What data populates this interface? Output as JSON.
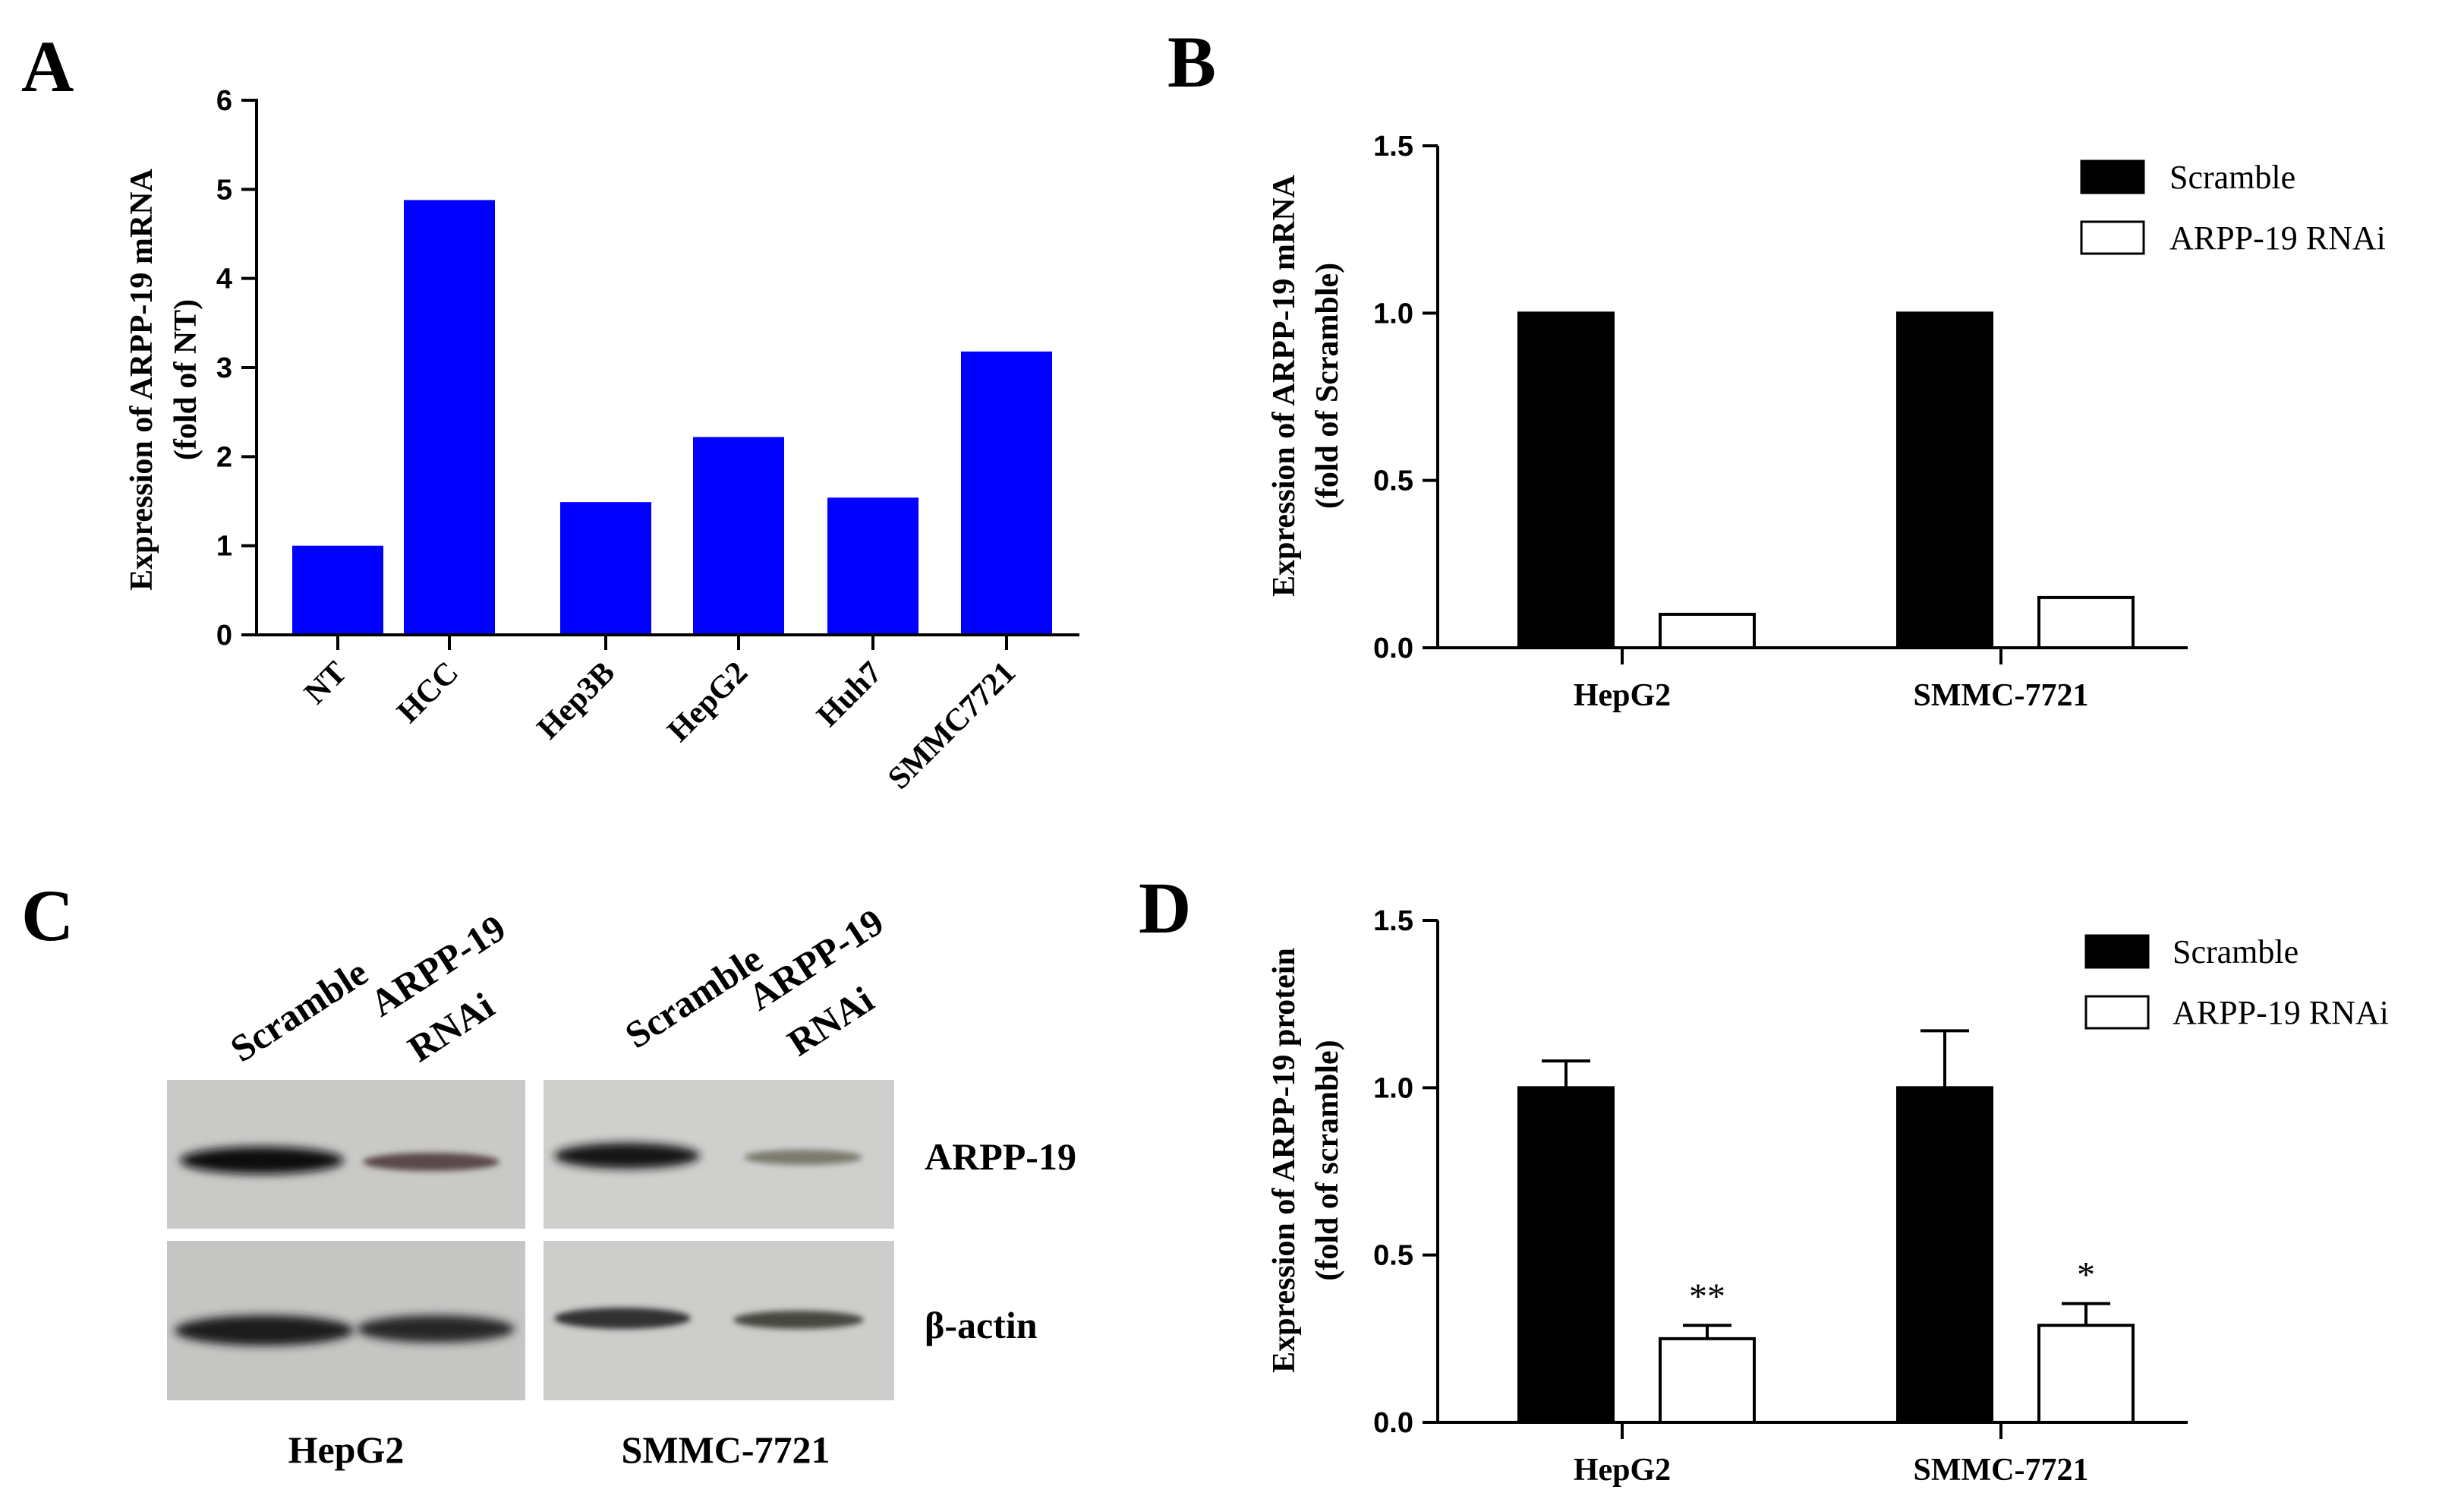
{
  "panels": {
    "A": {
      "letter": "A",
      "ylabel_line1": "Expression of ARPP-19 mRNA",
      "ylabel_line2": "(fold of NT)",
      "yticks": [
        "0",
        "1",
        "2",
        "3",
        "4",
        "5",
        "6"
      ]
    },
    "B": {
      "letter": "B",
      "ylabel_line1": "Expression of ARPP-19 mRNA",
      "ylabel_line2": "(fold of Scramble)",
      "yticks": [
        "0.0",
        "0.5",
        "1.0",
        "1.5"
      ],
      "legend": [
        "Scramble",
        "ARPP-19 RNAi"
      ]
    },
    "C": {
      "letter": "C",
      "lane_labels": {
        "scramble": "Scramble",
        "rnai_line1": "ARPP-19",
        "rnai_line2": "RNAi"
      },
      "row_labels": [
        "ARPP-19",
        "β-actin"
      ],
      "cell_lines": [
        "HepG2",
        "SMMC-7721"
      ]
    },
    "D": {
      "letter": "D",
      "ylabel_line1": "Expression of ARPP-19 protein",
      "ylabel_line2": "(fold of scramble)",
      "yticks": [
        "0.0",
        "0.5",
        "1.0",
        "1.5"
      ],
      "legend": [
        "Scramble",
        "ARPP-19 RNAi"
      ],
      "significance": [
        "**",
        "*"
      ]
    }
  },
  "colors": {
    "panel_a_bar": "#0000ff",
    "scramble": "#000000",
    "rnai": "#ffffff"
  },
  "chart_data": [
    {
      "panel": "A",
      "type": "bar",
      "categories": [
        "NT",
        "HCC",
        "Hep3B",
        "HepG2",
        "Huh7",
        "SMMC7721"
      ],
      "values": [
        1.0,
        4.88,
        1.49,
        2.22,
        1.54,
        3.18
      ],
      "ylabel": "Expression of ARPP-19 mRNA (fold of NT)",
      "ylim": [
        0,
        6
      ]
    },
    {
      "panel": "B",
      "type": "bar",
      "categories": [
        "HepG2",
        "SMMC-7721"
      ],
      "series": [
        {
          "name": "Scramble",
          "values": [
            1.0,
            1.0
          ]
        },
        {
          "name": "ARPP-19 RNAi",
          "values": [
            0.1,
            0.15
          ]
        }
      ],
      "ylabel": "Expression of ARPP-19 mRNA (fold of Scramble)",
      "ylim": [
        0,
        1.5
      ],
      "legend_position": "top-right"
    },
    {
      "panel": "D",
      "type": "bar",
      "categories": [
        "HepG2",
        "SMMC-7721"
      ],
      "series": [
        {
          "name": "Scramble",
          "values": [
            1.0,
            1.0
          ],
          "errors": [
            0.08,
            0.17
          ]
        },
        {
          "name": "ARPP-19 RNAi",
          "values": [
            0.25,
            0.29
          ],
          "errors": [
            0.04,
            0.065
          ]
        }
      ],
      "annotations": [
        "**",
        "*"
      ],
      "ylabel": "Expression of ARPP-19 protein (fold of scramble)",
      "ylim": [
        0,
        1.5
      ],
      "legend_position": "top-right"
    }
  ]
}
